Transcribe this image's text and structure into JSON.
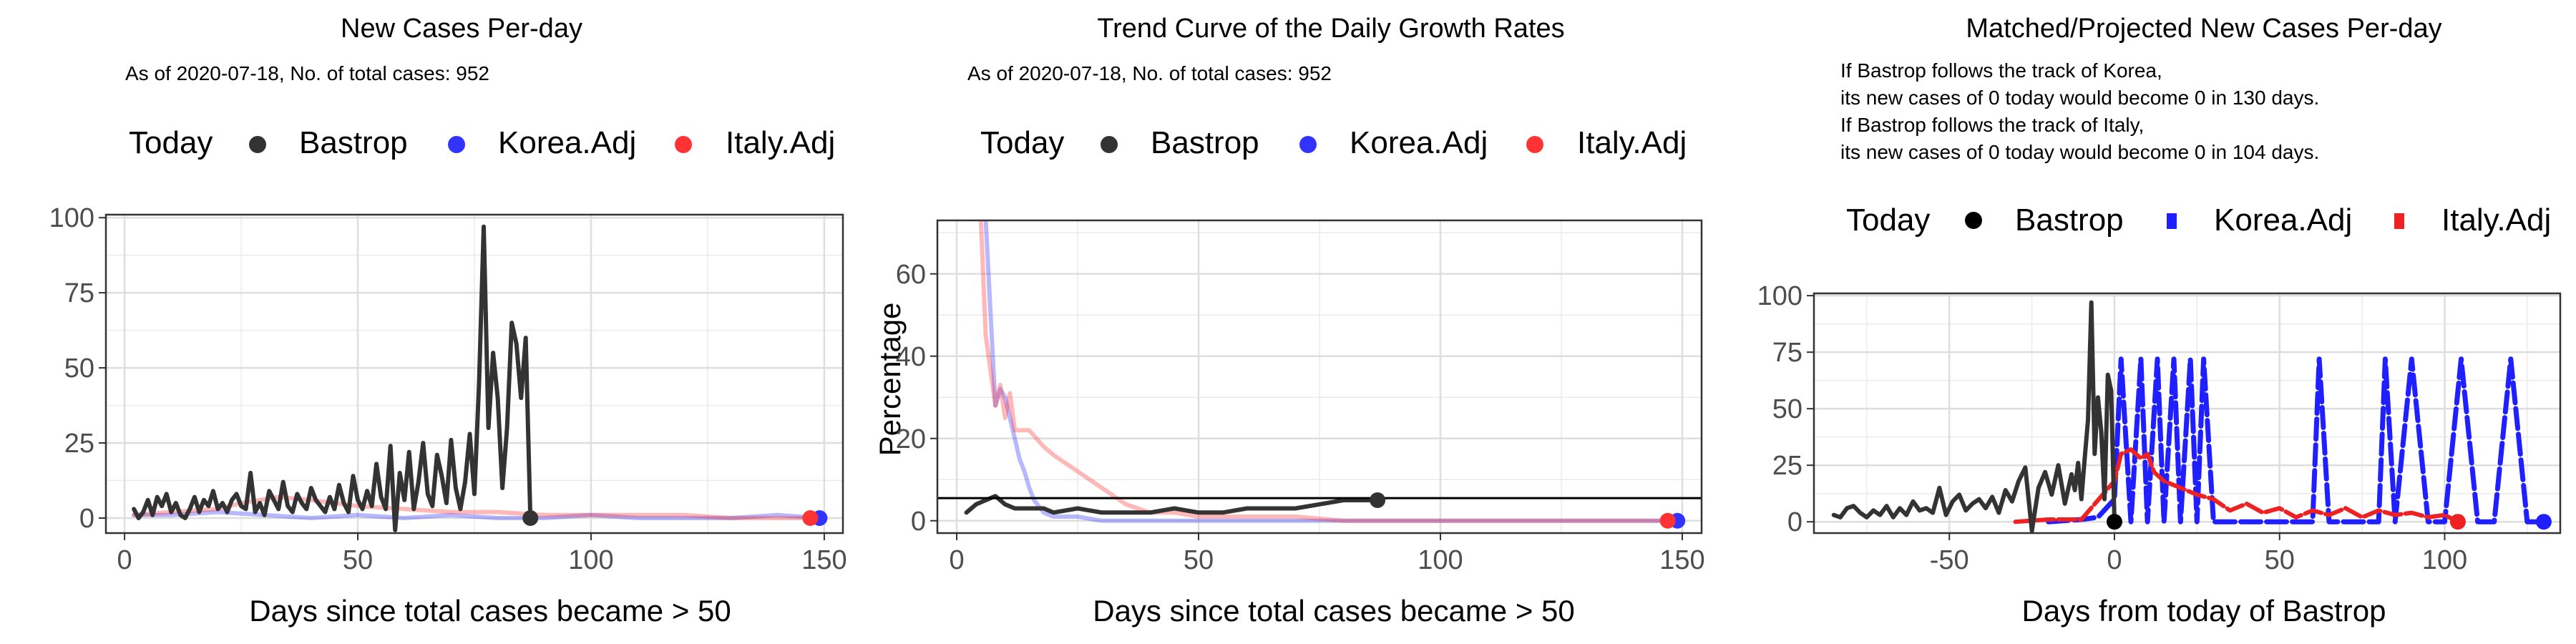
{
  "chart_data": [
    {
      "type": "line",
      "title": "New Cases Per-day",
      "subtitle": "As of 2020-07-18, No. of total cases: 952",
      "xlabel": "Days since total cases became > 50",
      "ylabel": "",
      "xlim": [
        -4,
        154
      ],
      "ylim": [
        -5,
        101
      ],
      "xticks": [
        "0",
        "50",
        "100",
        "150"
      ],
      "yticks": [
        "0",
        "25",
        "50",
        "75",
        "100"
      ],
      "legend": {
        "title": "Today",
        "position": "top",
        "items": [
          "Bastrop",
          "Korea.Adj",
          "Italy.Adj"
        ]
      },
      "grid": true,
      "series": [
        {
          "name": "Bastrop",
          "color": "#333333",
          "x": [
            2,
            3,
            4,
            5,
            6,
            7,
            8,
            9,
            10,
            11,
            12,
            13,
            14,
            15,
            16,
            17,
            18,
            19,
            20,
            21,
            22,
            23,
            24,
            25,
            26,
            27,
            28,
            29,
            30,
            31,
            32,
            33,
            34,
            35,
            36,
            37,
            38,
            39,
            40,
            41,
            42,
            43,
            44,
            45,
            46,
            47,
            48,
            49,
            50,
            51,
            52,
            53,
            54,
            55,
            56,
            57,
            58,
            59,
            60,
            61,
            62,
            63,
            64,
            65,
            66,
            67,
            68,
            69,
            70,
            71,
            72,
            73,
            74,
            75,
            76,
            77,
            78,
            79,
            80,
            81,
            82,
            83,
            84,
            85,
            86,
            87
          ],
          "y": [
            3,
            0,
            2,
            6,
            1,
            7,
            4,
            8,
            2,
            5,
            1,
            0,
            3,
            7,
            2,
            6,
            4,
            9,
            3,
            5,
            2,
            6,
            8,
            4,
            3,
            15,
            2,
            5,
            1,
            9,
            6,
            3,
            12,
            4,
            2,
            8,
            5,
            3,
            10,
            6,
            4,
            2,
            7,
            3,
            11,
            5,
            2,
            14,
            6,
            3,
            9,
            4,
            18,
            7,
            3,
            24,
            -4,
            15,
            6,
            22,
            3,
            12,
            25,
            8,
            4,
            21,
            14,
            5,
            26,
            10,
            3,
            12,
            28,
            8,
            45,
            97,
            30,
            55,
            40,
            10,
            30,
            65,
            58,
            40,
            60,
            0
          ]
        },
        {
          "name": "Korea.Adj",
          "color": "#3333ff",
          "x": [
            2,
            10,
            20,
            30,
            40,
            50,
            60,
            70,
            80,
            90,
            100,
            110,
            120,
            130,
            140,
            149
          ],
          "y": [
            1,
            1,
            2,
            1,
            0,
            1,
            0,
            1,
            0,
            0,
            1,
            0,
            0,
            0,
            1,
            0
          ]
        },
        {
          "name": "Italy.Adj",
          "color": "#ff3333",
          "x": [
            2,
            10,
            20,
            25,
            33,
            40,
            50,
            60,
            70,
            80,
            90,
            100,
            110,
            120,
            130,
            140,
            147
          ],
          "y": [
            1,
            2,
            3,
            5,
            7,
            6,
            4,
            3,
            2,
            2,
            1,
            1,
            1,
            1,
            0,
            0,
            0
          ]
        }
      ]
    },
    {
      "type": "line",
      "title": "Trend Curve of the Daily Growth Rates",
      "subtitle": "As of 2020-07-18, No. of total cases: 952",
      "xlabel": "Days since total cases became > 50",
      "ylabel": "Percentage",
      "xlim": [
        -4,
        154
      ],
      "ylim": [
        -3,
        73
      ],
      "xticks": [
        "0",
        "50",
        "100",
        "150"
      ],
      "yticks": [
        "0",
        "20",
        "40",
        "60"
      ],
      "hline": 5.5,
      "legend": {
        "title": "Today",
        "position": "top",
        "items": [
          "Bastrop",
          "Korea.Adj",
          "Italy.Adj"
        ]
      },
      "grid": true,
      "series": [
        {
          "name": "Bastrop",
          "color": "#333333",
          "x": [
            2,
            4,
            6,
            8,
            10,
            12,
            14,
            16,
            18,
            20,
            25,
            30,
            35,
            40,
            45,
            50,
            55,
            60,
            65,
            70,
            75,
            80,
            85,
            87
          ],
          "y": [
            2,
            4,
            5,
            6,
            4,
            3,
            3,
            3,
            3,
            2,
            3,
            2,
            2,
            2,
            3,
            2,
            2,
            3,
            3,
            3,
            4,
            5,
            5,
            5
          ]
        },
        {
          "name": "Korea.Adj",
          "color": "#3333ff",
          "x": [
            6,
            7,
            8,
            9,
            10,
            11,
            12,
            13,
            14,
            15,
            16,
            18,
            20,
            25,
            30,
            40,
            50,
            60,
            80,
            100,
            120,
            149
          ],
          "y": [
            73,
            50,
            28,
            32,
            30,
            25,
            20,
            15,
            12,
            8,
            5,
            2,
            1,
            1,
            0,
            0,
            0,
            0,
            0,
            0,
            0,
            0
          ]
        },
        {
          "name": "Italy.Adj",
          "color": "#ff3333",
          "x": [
            5,
            6,
            8,
            9,
            10,
            11,
            12,
            15,
            18,
            20,
            25,
            30,
            35,
            40,
            45,
            50,
            60,
            70,
            80,
            100,
            120,
            147
          ],
          "y": [
            73,
            45,
            28,
            33,
            25,
            31,
            22,
            22,
            18,
            16,
            12,
            8,
            4,
            2,
            2,
            1,
            1,
            1,
            0,
            0,
            0,
            0
          ]
        }
      ]
    },
    {
      "type": "line",
      "title": "Matched/Projected New Cases Per-day",
      "subtitle": [
        "If Bastrop follows the track of Korea,",
        "its new cases of 0 today would become 0 in 130 days.",
        "If Bastrop follows the track of Italy,",
        "its new cases of 0 today would become 0 in 104 days."
      ],
      "xlabel": "Days from today of Bastrop",
      "ylabel": "",
      "xlim": [
        -91,
        135
      ],
      "ylim": [
        -5,
        101
      ],
      "xticks": [
        "-50",
        "0",
        "50",
        "100"
      ],
      "yticks": [
        "0",
        "25",
        "50",
        "75",
        "100"
      ],
      "legend": {
        "title": "Today",
        "position": "top",
        "items": [
          "Bastrop",
          "Korea.Adj",
          "Italy.Adj"
        ]
      },
      "grid": true,
      "series": [
        {
          "name": "Bastrop",
          "color": "#333333",
          "x": [
            -85,
            -83,
            -81,
            -79,
            -77,
            -75,
            -73,
            -71,
            -69,
            -67,
            -65,
            -63,
            -61,
            -59,
            -57,
            -55,
            -53,
            -51,
            -49,
            -47,
            -45,
            -43,
            -41,
            -39,
            -37,
            -35,
            -33,
            -31,
            -29,
            -27,
            -25,
            -23,
            -21,
            -19,
            -17,
            -15,
            -13,
            -12,
            -11,
            -10,
            -9,
            -8,
            -7,
            -6,
            -5,
            -4,
            -3,
            -2,
            -1,
            0
          ],
          "y": [
            3,
            2,
            6,
            7,
            4,
            2,
            5,
            3,
            7,
            2,
            6,
            3,
            9,
            5,
            6,
            4,
            15,
            3,
            9,
            12,
            5,
            8,
            10,
            6,
            11,
            4,
            14,
            9,
            18,
            24,
            -4,
            15,
            22,
            12,
            25,
            8,
            21,
            14,
            26,
            10,
            28,
            45,
            97,
            30,
            55,
            40,
            10,
            65,
            58,
            0
          ]
        },
        {
          "name": "Korea.Adj",
          "color": "#1f1fff",
          "x": [
            -20,
            -10,
            -5,
            0,
            2,
            5,
            8,
            10,
            13,
            15,
            18,
            20,
            23,
            25,
            27,
            30,
            35,
            40,
            45,
            50,
            55,
            60,
            62,
            65,
            70,
            75,
            80,
            82,
            85,
            90,
            95,
            100,
            105,
            110,
            115,
            120,
            125,
            130
          ],
          "y": [
            0,
            1,
            2,
            10,
            72,
            0,
            72,
            0,
            72,
            0,
            72,
            0,
            72,
            0,
            72,
            0,
            0,
            0,
            0,
            0,
            0,
            0,
            72,
            0,
            0,
            0,
            0,
            72,
            0,
            72,
            0,
            0,
            72,
            0,
            0,
            72,
            0,
            0
          ]
        },
        {
          "name": "Italy.Adj",
          "color": "#ee2222",
          "x": [
            -30,
            -20,
            -10,
            0,
            2,
            5,
            8,
            10,
            12,
            15,
            20,
            25,
            30,
            35,
            40,
            45,
            50,
            55,
            60,
            65,
            70,
            75,
            80,
            85,
            90,
            95,
            100,
            104
          ],
          "y": [
            0,
            1,
            1,
            18,
            30,
            32,
            28,
            30,
            22,
            18,
            15,
            12,
            10,
            5,
            8,
            4,
            6,
            2,
            5,
            3,
            6,
            2,
            5,
            3,
            4,
            2,
            3,
            0
          ]
        }
      ]
    }
  ]
}
